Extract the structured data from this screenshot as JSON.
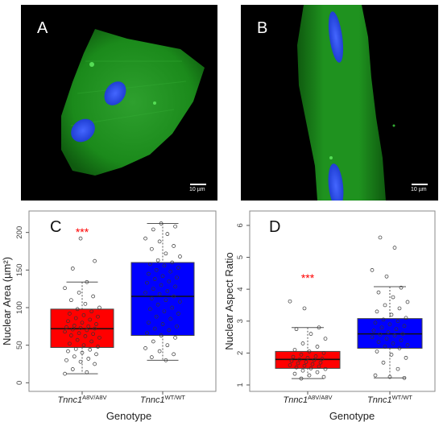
{
  "panel_a": {
    "letter": "A",
    "scale_label": "10 µm"
  },
  "panel_b": {
    "letter": "B",
    "scale_label": "10 µm"
  },
  "colors": {
    "mutant": "#ff0000",
    "wildtype": "#0000ff",
    "significance": "#ff0000",
    "fiber": "#1a8c1a",
    "nucleus": "#3355ee"
  },
  "chart_data": [
    {
      "type": "box",
      "panel": "C",
      "xlabel": "Genotype",
      "ylabel": "Nuclear Area (µm²)",
      "ylim": [
        -5,
        220
      ],
      "yticks": [
        "0",
        "50",
        "100",
        "150",
        "200"
      ],
      "grid": false,
      "significance": "***",
      "categories": [
        {
          "italic": "Tnnc1",
          "sup": "A8V/A8V",
          "color": "#ff0000"
        },
        {
          "italic": "Tnnc1",
          "sup": "WT/WT",
          "color": "#0000ff"
        }
      ],
      "boxes": [
        {
          "min": 12,
          "q1": 47,
          "median": 72,
          "q3": 98,
          "max": 134
        },
        {
          "min": 30,
          "q1": 63,
          "median": 115,
          "q3": 160,
          "max": 212
        }
      ],
      "points": [
        [
          12,
          14,
          18,
          25,
          28,
          30,
          32,
          35,
          38,
          40,
          42,
          44,
          45,
          48,
          50,
          52,
          55,
          57,
          60,
          62,
          63,
          65,
          66,
          68,
          70,
          71,
          72,
          73,
          74,
          75,
          76,
          78,
          80,
          82,
          84,
          86,
          88,
          90,
          92,
          95,
          98,
          100,
          105,
          110,
          115,
          120,
          126,
          134,
          152,
          162,
          192
        ],
        [
          30,
          34,
          38,
          42,
          46,
          50,
          55,
          60,
          63,
          66,
          70,
          72,
          75,
          78,
          80,
          85,
          88,
          92,
          95,
          98,
          100,
          104,
          108,
          110,
          112,
          115,
          118,
          120,
          122,
          125,
          128,
          130,
          133,
          135,
          138,
          140,
          142,
          145,
          148,
          150,
          153,
          156,
          158,
          160,
          163,
          168,
          172,
          178,
          182,
          188,
          192,
          198,
          204,
          208,
          212
        ]
      ]
    },
    {
      "type": "box",
      "panel": "D",
      "xlabel": "Genotype",
      "ylabel": "Nuclear Aspect Ratio",
      "ylim": [
        0.95,
        6.25
      ],
      "yticks": [
        "1",
        "2",
        "3",
        "4",
        "5",
        "6"
      ],
      "grid": false,
      "significance": "***",
      "categories": [
        {
          "italic": "Tnnc1",
          "sup": "A8V/A8V",
          "color": "#ff0000"
        },
        {
          "italic": "Tnnc1",
          "sup": "WT/WT",
          "color": "#0000ff"
        }
      ],
      "boxes": [
        {
          "min": 1.2,
          "q1": 1.52,
          "median": 1.8,
          "q3": 2.05,
          "max": 2.8
        },
        {
          "min": 1.22,
          "q1": 2.15,
          "median": 2.6,
          "q3": 3.08,
          "max": 4.08
        }
      ],
      "points": [
        [
          1.2,
          1.25,
          1.3,
          1.35,
          1.4,
          1.45,
          1.5,
          1.52,
          1.55,
          1.58,
          1.6,
          1.62,
          1.65,
          1.68,
          1.7,
          1.72,
          1.75,
          1.78,
          1.8,
          1.82,
          1.85,
          1.88,
          1.9,
          1.95,
          2.0,
          2.05,
          2.1,
          2.2,
          2.3,
          2.45,
          2.6,
          2.75,
          2.8,
          3.4,
          3.62
        ],
        [
          1.22,
          1.25,
          1.3,
          1.5,
          1.7,
          1.85,
          1.95,
          2.05,
          2.15,
          2.2,
          2.25,
          2.3,
          2.35,
          2.4,
          2.45,
          2.5,
          2.55,
          2.58,
          2.6,
          2.65,
          2.7,
          2.75,
          2.8,
          2.85,
          2.9,
          2.95,
          3.0,
          3.05,
          3.1,
          3.2,
          3.3,
          3.4,
          3.5,
          3.6,
          3.75,
          3.9,
          4.05,
          4.4,
          4.6,
          5.3,
          5.62
        ]
      ]
    }
  ]
}
